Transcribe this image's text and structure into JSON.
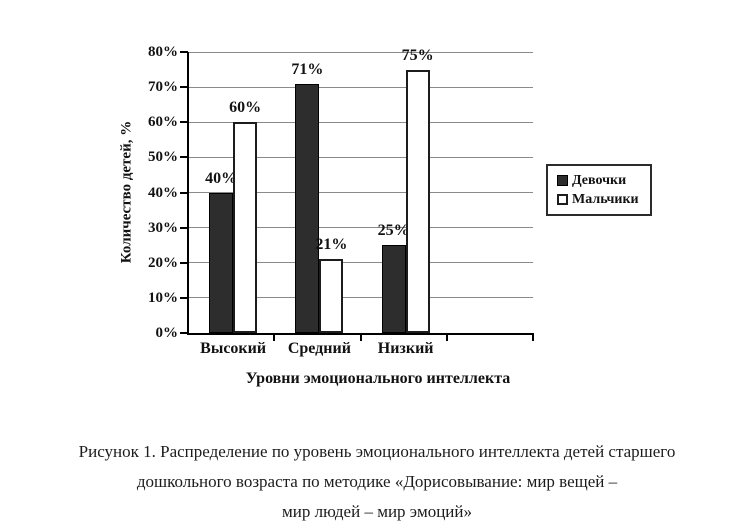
{
  "chart_data": {
    "type": "bar",
    "categories": [
      "Высокий",
      "Средний",
      "Низкий"
    ],
    "series": [
      {
        "name": "Девочки",
        "values": [
          40,
          71,
          25
        ],
        "color": "#2d2d2d"
      },
      {
        "name": "Мальчики",
        "values": [
          60,
          21,
          75
        ],
        "color": "#ffffff"
      }
    ],
    "data_labels": [
      [
        "40%",
        "71%",
        "25%"
      ],
      [
        "60%",
        "21%",
        "75%"
      ]
    ],
    "xlabel": "Уровни эмоционального интеллекта",
    "ylabel": "Количество детей, %",
    "ylim": [
      0,
      80
    ],
    "ytick_step": 10,
    "ytick_labels": [
      "0%",
      "10%",
      "20%",
      "30%",
      "40%",
      "50%",
      "60%",
      "70%",
      "80%"
    ],
    "grid": true,
    "legend_position": "right",
    "empty_fourth_slot": true
  },
  "legend": {
    "items": [
      {
        "label": "Девочки"
      },
      {
        "label": "Мальчики"
      }
    ]
  },
  "caption": {
    "lines": [
      "Рисунок 1. Распределение по уровень эмоционального интеллекта детей старшего",
      "дошкольного возраста по методике «Дорисовывание: мир вещей –",
      "мир людей – мир эмоций»"
    ]
  },
  "colors": {
    "bar_dark": "#2d2d2d",
    "bar_light": "#ffffff",
    "gridline": "#8a8a8a",
    "axis": "#000000",
    "text": "#121212"
  }
}
